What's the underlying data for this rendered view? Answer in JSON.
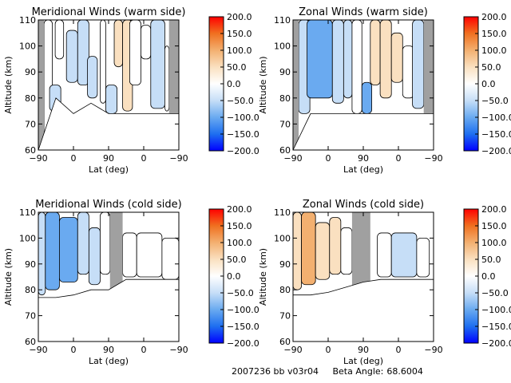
{
  "footer": {
    "run_id": "2007236 bb v03r04",
    "beta_label": "Beta Angle:",
    "beta_value": "68.6004"
  },
  "colorscale": {
    "ticks": [
      "200.0",
      "150.0",
      "100.0",
      "50.0",
      "0.0",
      "−50.0",
      "−100.0",
      "−150.0",
      "−200.0"
    ],
    "colors": [
      "#0000ff",
      "#1e6ff0",
      "#6aaaf0",
      "#c6def7",
      "#ffffff",
      "#fae0c0",
      "#f3b070",
      "#f07020",
      "#ff0000"
    ]
  },
  "chart_data": [
    {
      "type": "heatmap",
      "title": "Meridional Winds (warm side)",
      "xlabel": "Lat (deg)",
      "ylabel": "Altitude (km)",
      "x_ticks": [
        "−90",
        "0",
        "90",
        "0",
        "−90"
      ],
      "y_ticks": [
        "110",
        "100",
        "90",
        "80",
        "70",
        "60"
      ],
      "ylim": [
        60,
        110
      ],
      "colorbar_range": [
        -200,
        200
      ],
      "data_gaps": [
        [
          0.0,
          0.04
        ],
        [
          0.93,
          1.0
        ]
      ],
      "data_start_y": [
        null,
        80,
        74,
        78,
        74,
        74,
        74,
        74,
        74
      ],
      "segments": [
        {
          "x": [
            0.04,
            0.1
          ],
          "y": [
            60,
            110
          ],
          "value": -10
        },
        {
          "x": [
            0.08,
            0.16
          ],
          "y": [
            75,
            85
          ],
          "value": -30
        },
        {
          "x": [
            0.12,
            0.18
          ],
          "y": [
            95,
            110
          ],
          "value": -25
        },
        {
          "x": [
            0.2,
            0.28
          ],
          "y": [
            86,
            106
          ],
          "value": -40
        },
        {
          "x": [
            0.28,
            0.36
          ],
          "y": [
            85,
            110
          ],
          "value": -55
        },
        {
          "x": [
            0.35,
            0.42
          ],
          "y": [
            80,
            96
          ],
          "value": -35
        },
        {
          "x": [
            0.44,
            0.48
          ],
          "y": [
            78,
            110
          ],
          "value": -20
        },
        {
          "x": [
            0.48,
            0.56
          ],
          "y": [
            74,
            85
          ],
          "value": -70
        },
        {
          "x": [
            0.54,
            0.6
          ],
          "y": [
            92,
            110
          ],
          "value": 30
        },
        {
          "x": [
            0.6,
            0.67
          ],
          "y": [
            75,
            110
          ],
          "value": 45
        },
        {
          "x": [
            0.65,
            0.73
          ],
          "y": [
            85,
            110
          ],
          "value": 20
        },
        {
          "x": [
            0.73,
            0.8
          ],
          "y": [
            95,
            108
          ],
          "value": -20
        },
        {
          "x": [
            0.8,
            0.9
          ],
          "y": [
            76,
            110
          ],
          "value": -45
        },
        {
          "x": [
            0.9,
            0.93
          ],
          "y": [
            75,
            100
          ],
          "value": -25
        }
      ]
    },
    {
      "type": "heatmap",
      "title": "Zonal Winds (warm side)",
      "xlabel": "Lat (deg)",
      "ylabel": "Altitude (km)",
      "x_ticks": [
        "−90",
        "0",
        "90",
        "0",
        "−90"
      ],
      "y_ticks": [
        "110",
        "100",
        "90",
        "80",
        "70",
        "60"
      ],
      "ylim": [
        60,
        110
      ],
      "colorbar_range": [
        -200,
        200
      ],
      "data_gaps": [
        [
          0.0,
          0.04
        ],
        [
          0.93,
          1.0
        ]
      ],
      "data_start_y": [
        null,
        74,
        74,
        74,
        74,
        74,
        74,
        74,
        74
      ],
      "segments": [
        {
          "x": [
            0.04,
            0.12
          ],
          "y": [
            74,
            110
          ],
          "value": -60
        },
        {
          "x": [
            0.1,
            0.28
          ],
          "y": [
            80,
            110
          ],
          "value": -90
        },
        {
          "x": [
            0.28,
            0.36
          ],
          "y": [
            78,
            110
          ],
          "value": -70
        },
        {
          "x": [
            0.36,
            0.42
          ],
          "y": [
            80,
            110
          ],
          "value": -40
        },
        {
          "x": [
            0.42,
            0.49
          ],
          "y": [
            74,
            110
          ],
          "value": -20
        },
        {
          "x": [
            0.49,
            0.56
          ],
          "y": [
            74,
            86
          ],
          "value": -80
        },
        {
          "x": [
            0.55,
            0.62
          ],
          "y": [
            85,
            110
          ],
          "value": 40
        },
        {
          "x": [
            0.62,
            0.7
          ],
          "y": [
            80,
            110
          ],
          "value": 70
        },
        {
          "x": [
            0.7,
            0.78
          ],
          "y": [
            86,
            105
          ],
          "value": 25
        },
        {
          "x": [
            0.78,
            0.86
          ],
          "y": [
            80,
            100
          ],
          "value": -20
        },
        {
          "x": [
            0.85,
            0.93
          ],
          "y": [
            76,
            110
          ],
          "value": -40
        }
      ]
    },
    {
      "type": "heatmap",
      "title": "Meridional Winds (cold side)",
      "xlabel": "Lat (deg)",
      "ylabel": "Altitude (km)",
      "x_ticks": [
        "−90",
        "0",
        "90",
        "0",
        "−90"
      ],
      "y_ticks": [
        "110",
        "100",
        "90",
        "80",
        "70",
        "60"
      ],
      "ylim": [
        60,
        110
      ],
      "colorbar_range": [
        -200,
        200
      ],
      "data_gaps": [
        [
          0.51,
          0.6
        ]
      ],
      "data_start_y": [
        77,
        77,
        78,
        80,
        80,
        84,
        84,
        84,
        84
      ],
      "segments": [
        {
          "x": [
            0.0,
            0.05
          ],
          "y": [
            78,
            110
          ],
          "value": -30
        },
        {
          "x": [
            0.05,
            0.15
          ],
          "y": [
            80,
            110
          ],
          "value": -80
        },
        {
          "x": [
            0.15,
            0.28
          ],
          "y": [
            83,
            108
          ],
          "value": -100
        },
        {
          "x": [
            0.28,
            0.36
          ],
          "y": [
            86,
            110
          ],
          "value": -60
        },
        {
          "x": [
            0.36,
            0.44
          ],
          "y": [
            82,
            104
          ],
          "value": -35
        },
        {
          "x": [
            0.44,
            0.51
          ],
          "y": [
            86,
            110
          ],
          "value": -15
        },
        {
          "x": [
            0.6,
            0.7
          ],
          "y": [
            85,
            102
          ],
          "value": -20
        },
        {
          "x": [
            0.7,
            0.88
          ],
          "y": [
            85,
            102
          ],
          "value": -20
        },
        {
          "x": [
            0.88,
            1.0
          ],
          "y": [
            84,
            100
          ],
          "value": -15
        }
      ]
    },
    {
      "type": "heatmap",
      "title": "Zonal Winds (cold side)",
      "xlabel": "Lat (deg)",
      "ylabel": "Altitude (km)",
      "x_ticks": [
        "−90",
        "0",
        "90",
        "0",
        "−90"
      ],
      "y_ticks": [
        "110",
        "100",
        "90",
        "80",
        "70",
        "60"
      ],
      "ylim": [
        60,
        110
      ],
      "colorbar_range": [
        -200,
        200
      ],
      "data_gaps": [
        [
          0.42,
          0.55
        ]
      ],
      "data_start_y": [
        78,
        78,
        79,
        81,
        83,
        84,
        84,
        84,
        84
      ],
      "segments": [
        {
          "x": [
            0.0,
            0.06
          ],
          "y": [
            80,
            110
          ],
          "value": 50
        },
        {
          "x": [
            0.06,
            0.16
          ],
          "y": [
            82,
            110
          ],
          "value": 90
        },
        {
          "x": [
            0.16,
            0.26
          ],
          "y": [
            84,
            106
          ],
          "value": 50
        },
        {
          "x": [
            0.26,
            0.34
          ],
          "y": [
            86,
            108
          ],
          "value": 25
        },
        {
          "x": [
            0.34,
            0.42
          ],
          "y": [
            86,
            104
          ],
          "value": -20
        },
        {
          "x": [
            0.6,
            0.7
          ],
          "y": [
            85,
            102
          ],
          "value": -20
        },
        {
          "x": [
            0.7,
            0.88
          ],
          "y": [
            85,
            102
          ],
          "value": -35
        },
        {
          "x": [
            0.88,
            0.97
          ],
          "y": [
            85,
            100
          ],
          "value": -20
        }
      ]
    }
  ]
}
